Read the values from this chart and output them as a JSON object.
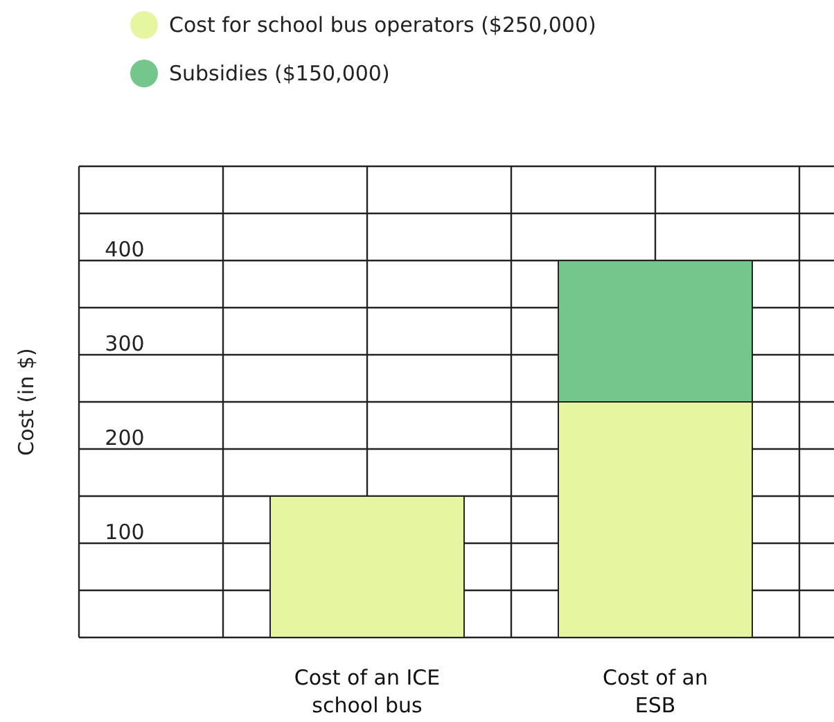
{
  "chart_data": {
    "type": "bar",
    "stacked": true,
    "ylabel": "Cost (in $)",
    "categories": [
      "Cost of an ICE school bus",
      "Cost of an ESB"
    ],
    "series": [
      {
        "name": "Cost for school bus operators ($250,000)",
        "color": "#e6f5a0",
        "values": [
          150,
          250
        ]
      },
      {
        "name": "Subsidies ($150,000)",
        "color": "#74c68c",
        "values": [
          null,
          150
        ]
      }
    ],
    "ylim": [
      0,
      500
    ],
    "yticks": [
      {
        "value": 0,
        "label": null
      },
      {
        "value": 50,
        "label": null
      },
      100,
      {
        "value": 150,
        "label": null
      },
      200,
      {
        "value": 250,
        "label": null
      },
      300,
      {
        "value": 350,
        "label": null
      },
      400,
      {
        "value": 450,
        "label": null
      },
      {
        "value": 500,
        "label": null
      }
    ],
    "grid": true,
    "legend": "top left"
  }
}
